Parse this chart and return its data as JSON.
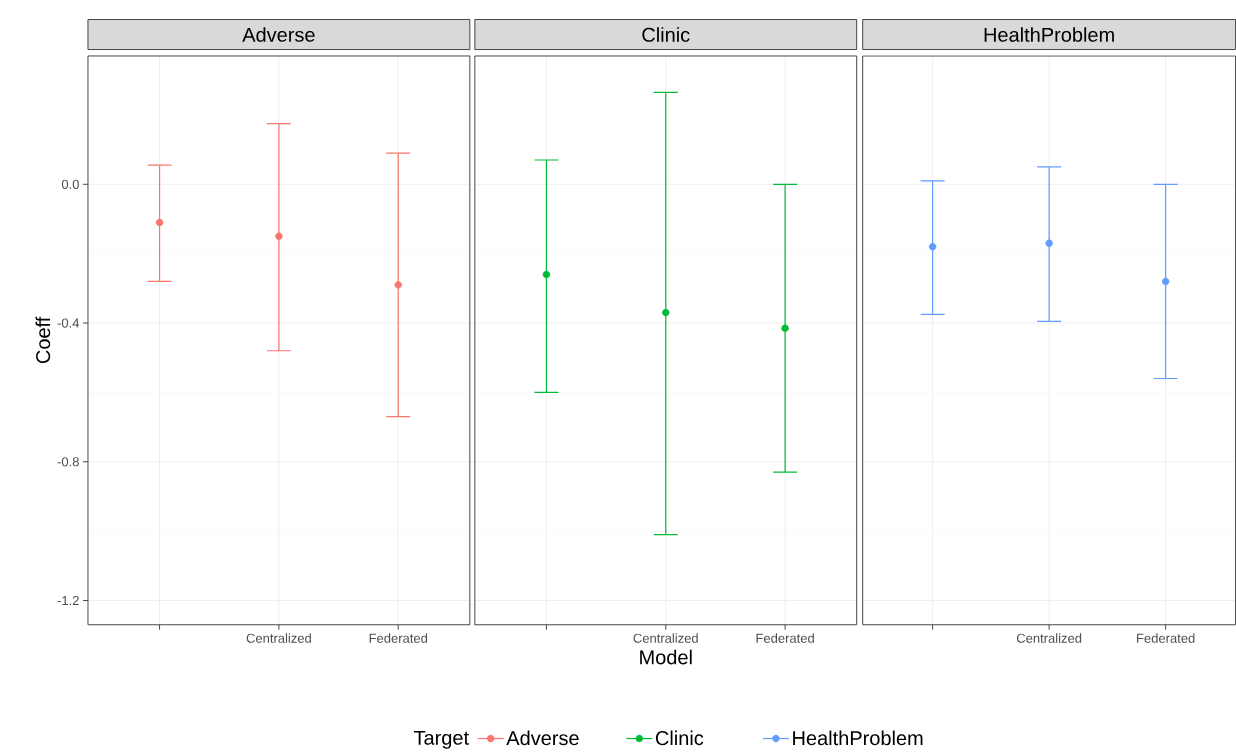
{
  "chart_data": [
    {
      "type": "scatter",
      "title": "Adverse",
      "ylabel": "Coeff",
      "legend_title": "Target",
      "legend": "bottom",
      "marker": "circle",
      "grid": true,
      "categories": [
        null,
        "Centralized",
        "Federated"
      ],
      "series": [
        {
          "name": "Adverse",
          "color": "#f8766d",
          "values": [
            -0.11,
            -0.15,
            -0.29
          ],
          "errors": [
            [
              -0.28,
              0.055
            ],
            [
              -0.48,
              0.175
            ],
            [
              -0.67,
              0.09
            ]
          ]
        }
      ],
      "ylim": [
        -1.27,
        0.37
      ],
      "yticks": [
        -1.2,
        -0.8,
        -0.4,
        {
          "value": 0,
          "label": "0.0"
        }
      ]
    },
    {
      "type": "scatter",
      "title": "Clinic",
      "xlabel": "Model",
      "legend": "bottom",
      "marker": "circle",
      "grid": true,
      "tick_labels": "x",
      "categories": [
        null,
        "Centralized",
        "Federated"
      ],
      "series": [
        {
          "name": "Clinic",
          "color": "#00ba38",
          "values": [
            -0.26,
            -0.37,
            -0.415
          ],
          "errors": [
            [
              -0.6,
              0.07
            ],
            [
              -1.01,
              0.265
            ],
            [
              -0.83,
              0.0
            ]
          ]
        }
      ],
      "ylim": [
        -1.27,
        0.37
      ],
      "yticks": [
        -1.2,
        -0.8,
        -0.4,
        0
      ]
    },
    {
      "type": "scatter",
      "title": "HealthProblem",
      "legend": "bottom",
      "marker": "circle",
      "grid": true,
      "tick_labels": "x",
      "categories": [
        null,
        "Centralized",
        "Federated"
      ],
      "series": [
        {
          "name": "HealthProblem",
          "color": "#619cff",
          "values": [
            -0.18,
            -0.17,
            -0.28
          ],
          "errors": [
            [
              -0.375,
              0.01
            ],
            [
              -0.395,
              0.05
            ],
            [
              -0.56,
              0.0
            ]
          ]
        }
      ],
      "ylim": [
        -1.27,
        0.37
      ],
      "yticks": [
        -1.2,
        -0.8,
        -0.4,
        0
      ]
    }
  ]
}
